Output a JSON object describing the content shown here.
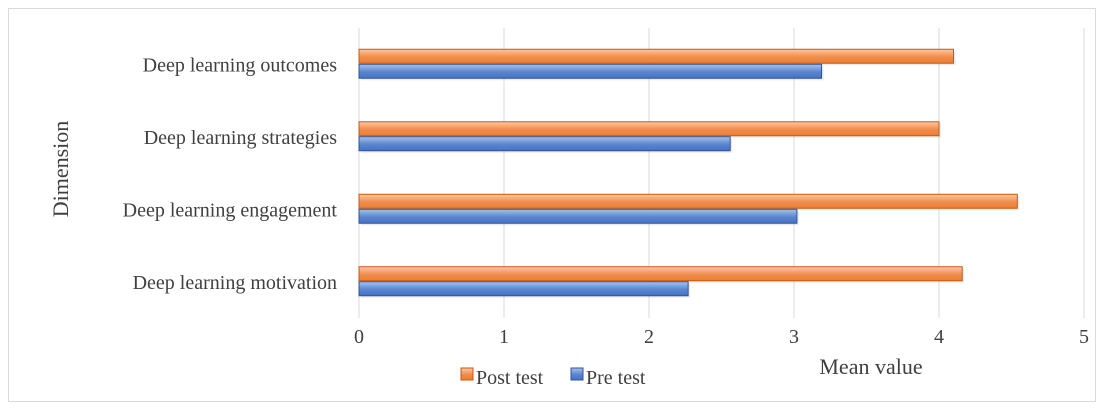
{
  "colors": {
    "post_fill_top": "#fbc9a5",
    "post_fill_bottom": "#ed7d31",
    "post_stroke": "#c55a11",
    "pre_fill_top": "#a9c1ec",
    "pre_fill_bottom": "#4472c4",
    "pre_stroke": "#2f5597",
    "grid": "#d9d9d9"
  },
  "chart_data": {
    "type": "bar",
    "orientation": "horizontal",
    "categories": [
      "Deep learning outcomes",
      "Deep learning strategies",
      "Deep learning engagement",
      "Deep learning motivation"
    ],
    "series": [
      {
        "name": "Post test",
        "values": [
          4.1,
          4.0,
          4.54,
          4.16
        ]
      },
      {
        "name": "Pre test",
        "values": [
          3.19,
          2.56,
          3.02,
          2.27
        ]
      }
    ],
    "xlabel": "Mean value",
    "ylabel": "Dimension",
    "xlim": [
      0,
      5
    ],
    "xticks": [
      "0",
      "1",
      "2",
      "3",
      "4",
      "5"
    ],
    "grid": "vertical",
    "legend_position": "bottom-left"
  }
}
